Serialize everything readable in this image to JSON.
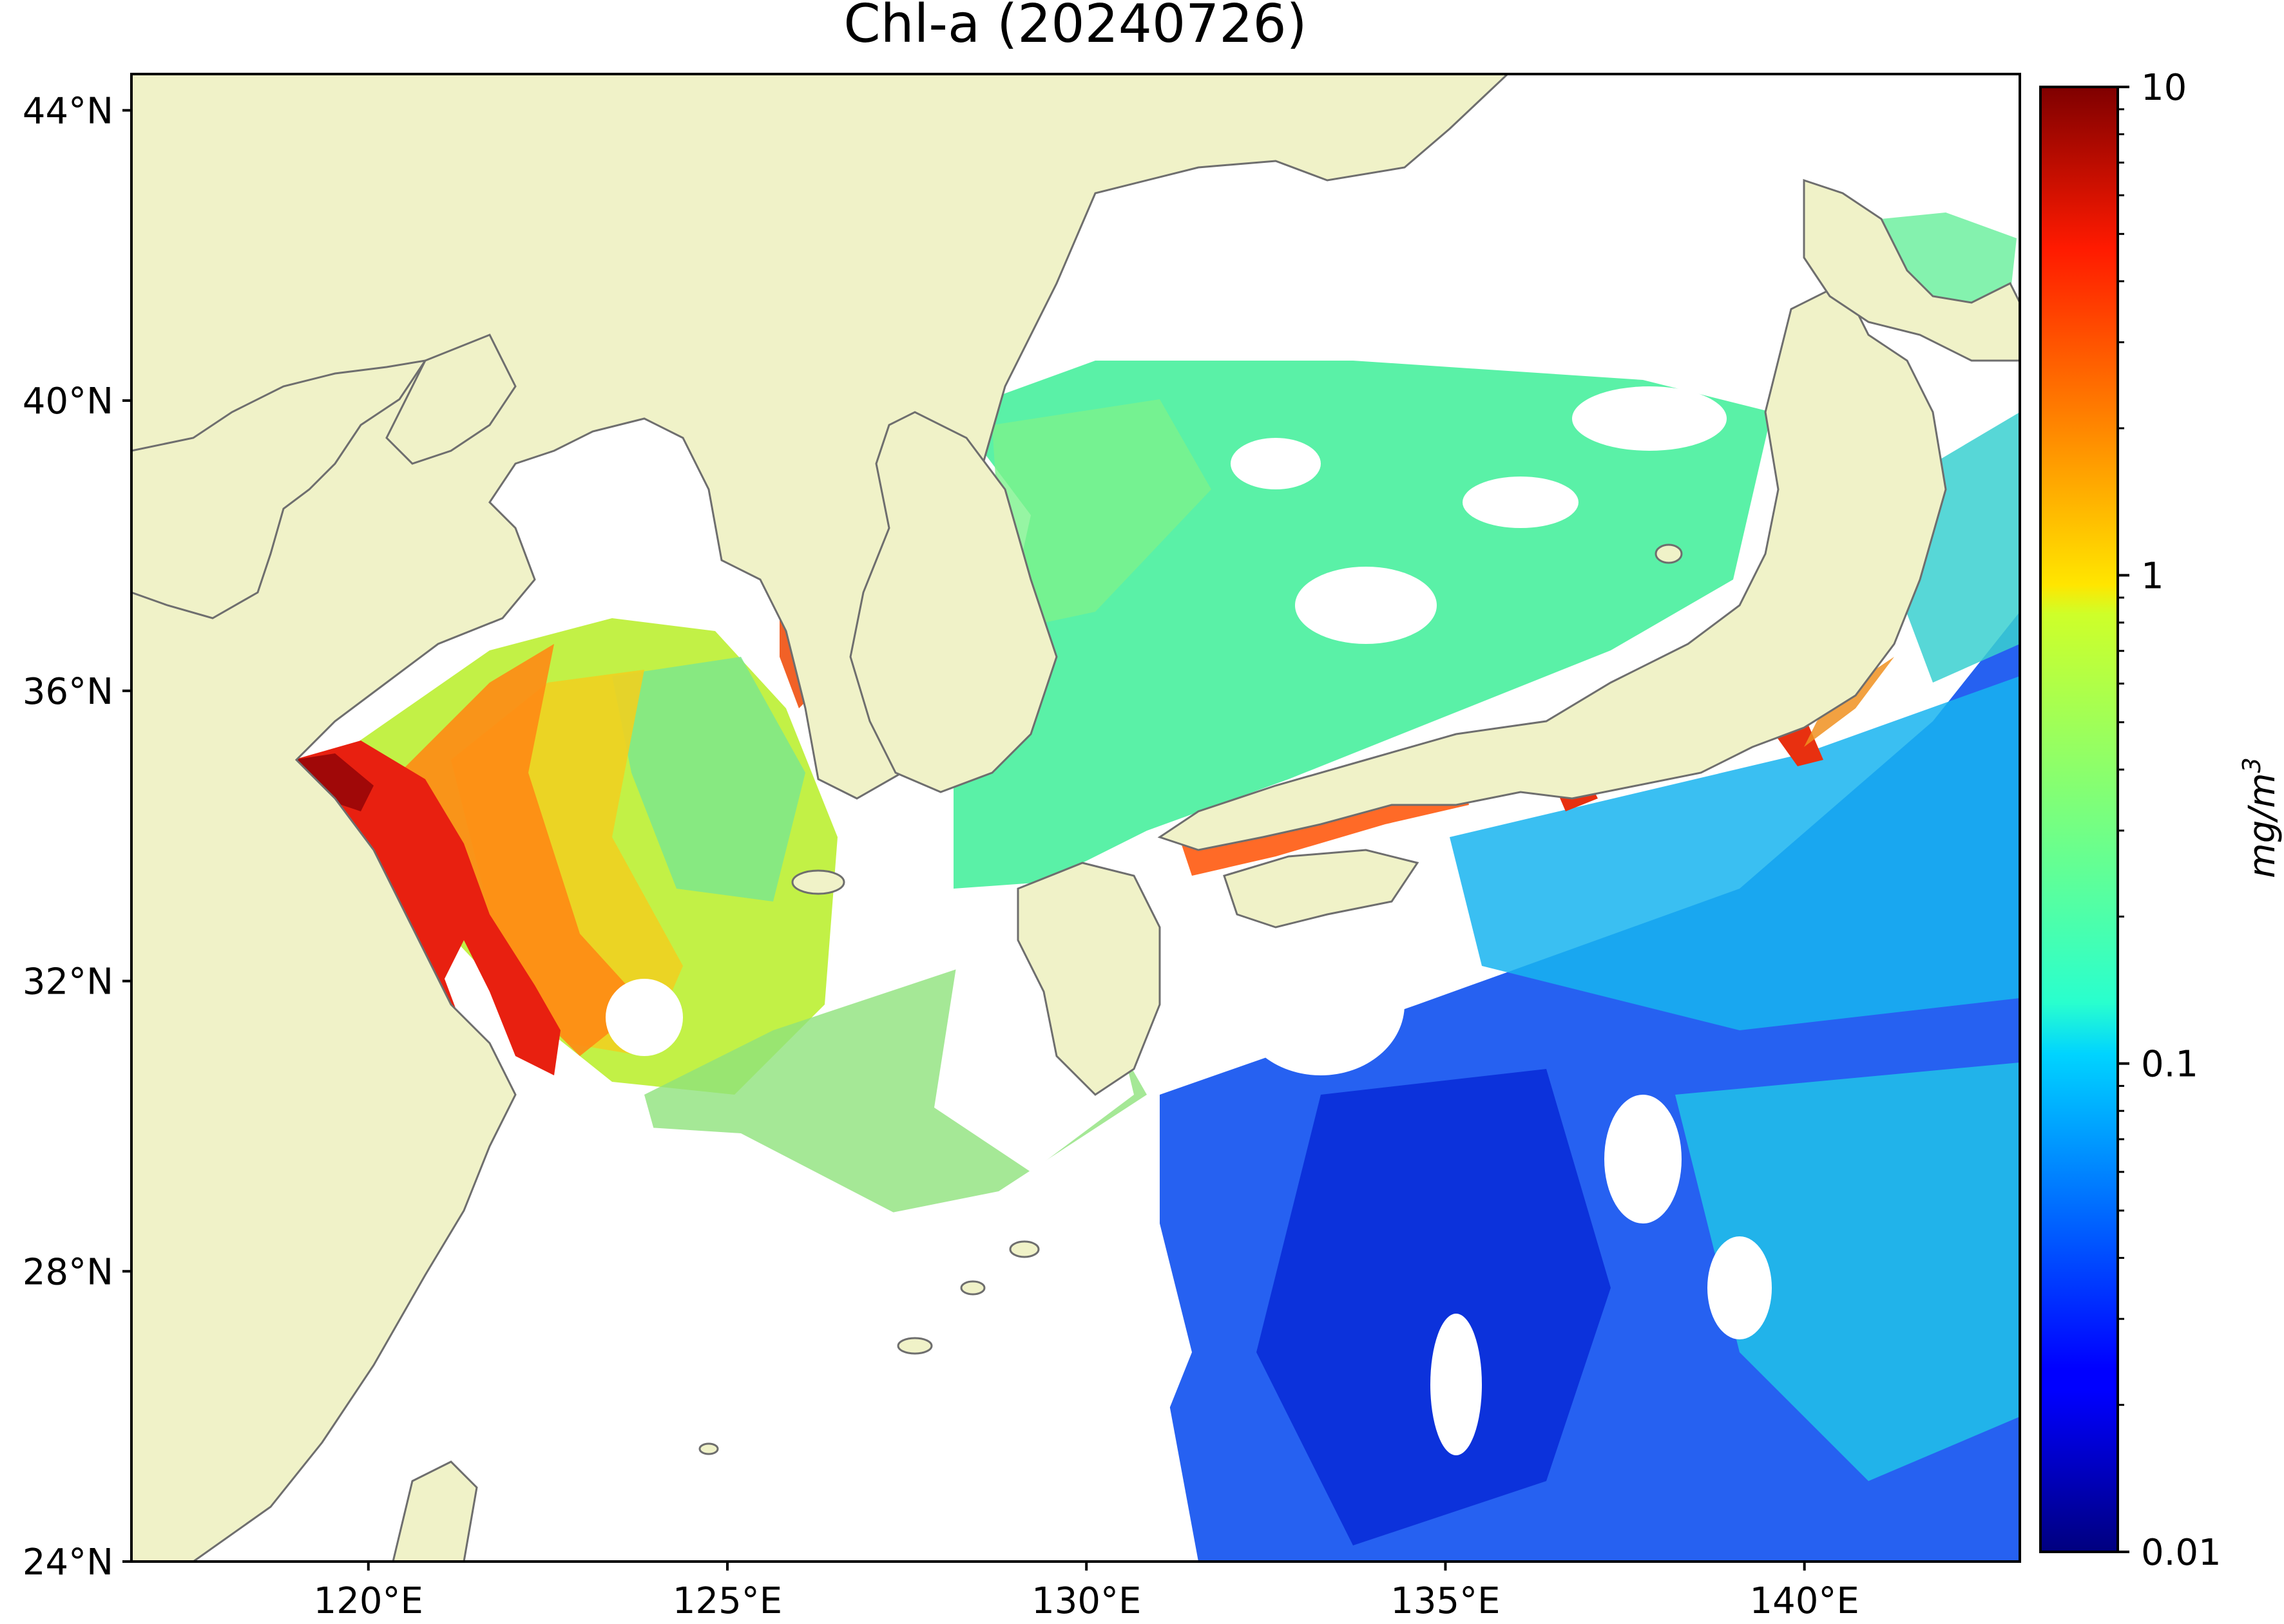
{
  "map": {
    "title": "Chl-a (20240726)",
    "lat_ticks": [
      {
        "value": 44,
        "label": "44°N"
      },
      {
        "value": 40,
        "label": "40°N"
      },
      {
        "value": 36,
        "label": "36°N"
      },
      {
        "value": 32,
        "label": "32°N"
      },
      {
        "value": 28,
        "label": "28°N"
      },
      {
        "value": 24,
        "label": "24°N"
      }
    ],
    "lon_ticks": [
      {
        "value": 120,
        "label": "120°E"
      },
      {
        "value": 125,
        "label": "125°E"
      },
      {
        "value": 130,
        "label": "130°E"
      },
      {
        "value": 135,
        "label": "135°E"
      },
      {
        "value": 140,
        "label": "140°E"
      }
    ],
    "extent": {
      "lon": [
        116.7,
        143.0
      ],
      "lat": [
        24.0,
        44.5
      ]
    },
    "colors": {
      "land": "#f0f2c8",
      "coast": "#6e6e6e",
      "nodata": "#ffffff"
    }
  },
  "colorbar": {
    "label": "mg/m",
    "label_exp": "3",
    "scale": "log",
    "range": [
      0.01,
      10
    ],
    "colormap": "jet",
    "ticks": [
      {
        "value": 10,
        "label": "10"
      },
      {
        "value": 1,
        "label": "1"
      },
      {
        "value": 0.1,
        "label": "0.1"
      },
      {
        "value": 0.01,
        "label": "0.01"
      }
    ]
  }
}
